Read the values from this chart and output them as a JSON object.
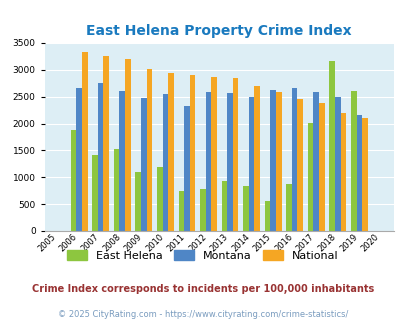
{
  "title": "East Helena Property Crime Index",
  "title_color": "#1a7abf",
  "years": [
    2005,
    2006,
    2007,
    2008,
    2009,
    2010,
    2011,
    2012,
    2013,
    2014,
    2015,
    2016,
    2017,
    2018,
    2019,
    2020
  ],
  "bar_years": [
    2006,
    2007,
    2008,
    2009,
    2010,
    2011,
    2012,
    2013,
    2014,
    2015,
    2016,
    2017,
    2018,
    2019
  ],
  "east_helena": [
    1880,
    1420,
    1520,
    1100,
    1200,
    750,
    790,
    930,
    840,
    550,
    880,
    2010,
    3160,
    2600
  ],
  "montana": [
    2660,
    2760,
    2600,
    2470,
    2540,
    2330,
    2590,
    2570,
    2490,
    2630,
    2660,
    2580,
    2490,
    2160
  ],
  "national": [
    3330,
    3250,
    3200,
    3020,
    2940,
    2910,
    2870,
    2840,
    2700,
    2590,
    2460,
    2380,
    2200,
    2110
  ],
  "color_eh": "#8dc63f",
  "color_mt": "#4f86c6",
  "color_na": "#f5a623",
  "bg_color": "#ddeef5",
  "ylim": [
    0,
    3500
  ],
  "yticks": [
    0,
    500,
    1000,
    1500,
    2000,
    2500,
    3000,
    3500
  ],
  "legend_labels": [
    "East Helena",
    "Montana",
    "National"
  ],
  "footnote1": "Crime Index corresponds to incidents per 100,000 inhabitants",
  "footnote2": "© 2025 CityRating.com - https://www.cityrating.com/crime-statistics/",
  "footnote1_color": "#993333",
  "footnote2_color": "#7a9cbf"
}
